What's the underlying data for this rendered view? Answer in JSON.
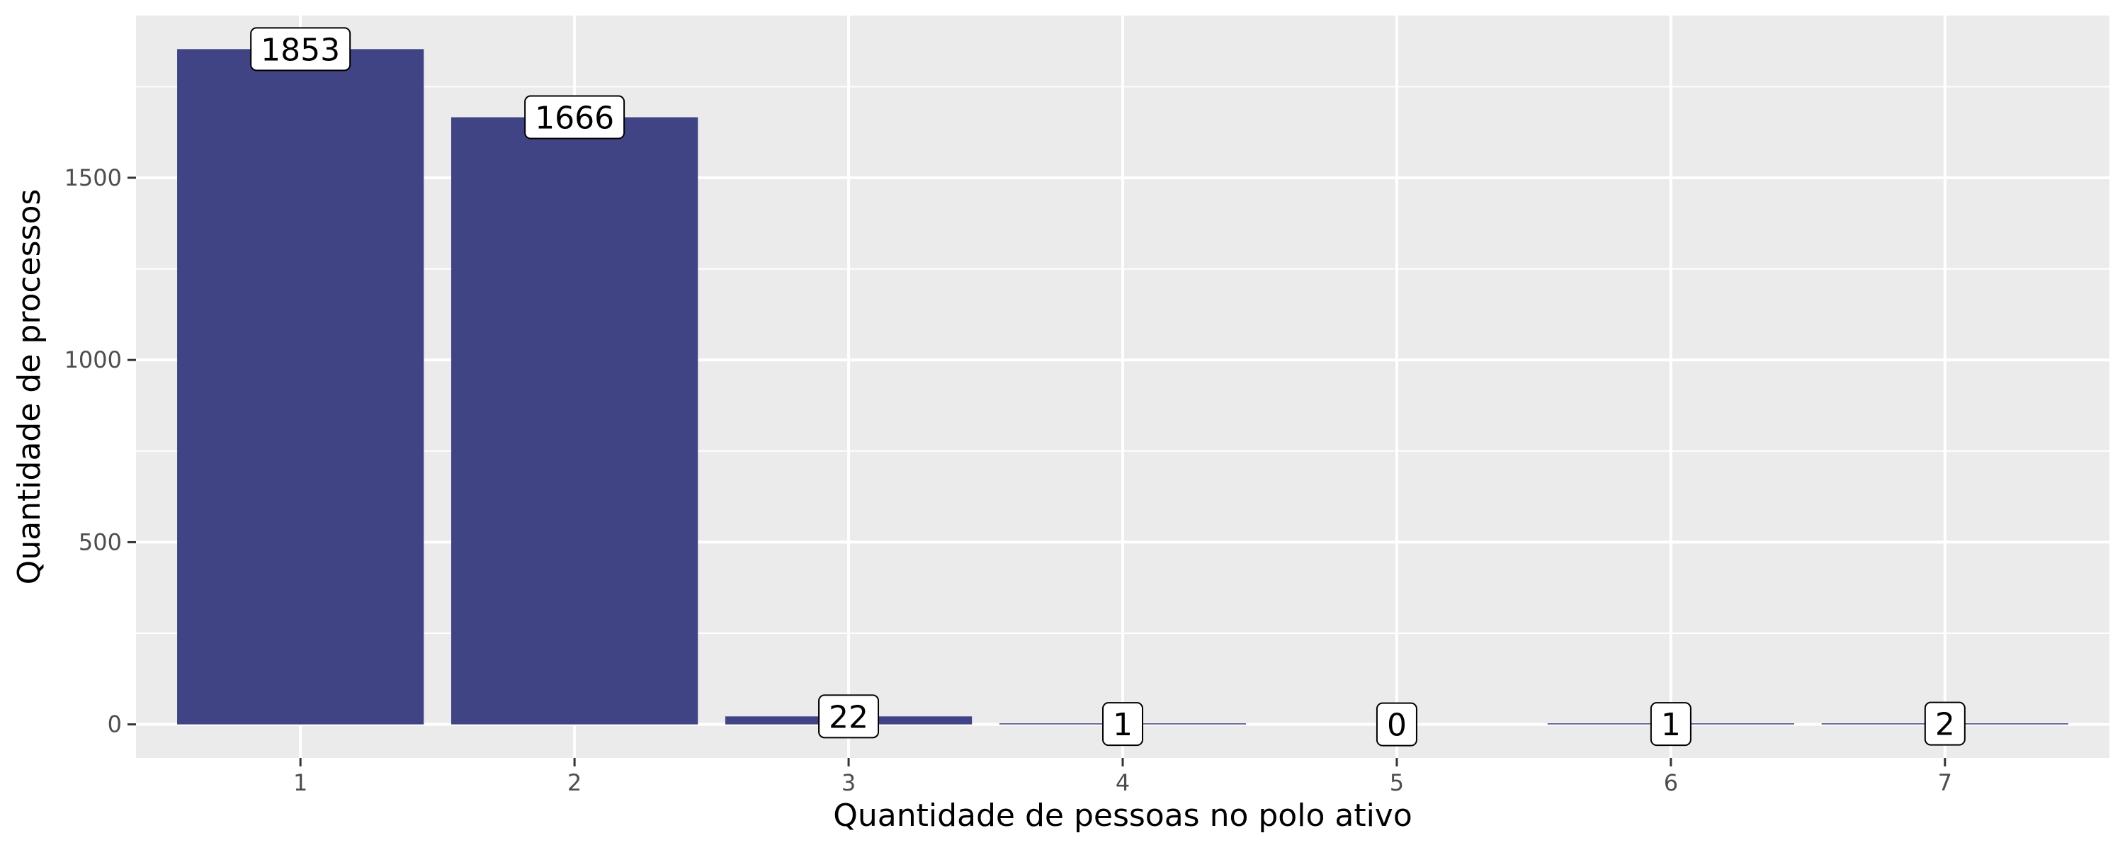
{
  "chart_data": {
    "type": "bar",
    "title": "",
    "xlabel": "Quantidade de pessoas no polo ativo",
    "ylabel": "Quantidade de processos",
    "categories": [
      "1",
      "2",
      "3",
      "4",
      "5",
      "6",
      "7"
    ],
    "values": [
      1853,
      1666,
      22,
      1,
      0,
      1,
      2
    ],
    "data_labels": [
      "1853",
      "1666",
      "22",
      "1",
      "0",
      "1",
      "2"
    ],
    "y_ticks": [
      0,
      500,
      1000,
      1500
    ],
    "y_tick_labels": [
      "0",
      "500",
      "1000",
      "1500"
    ],
    "ylim": [
      -92,
      1945
    ],
    "grid": true,
    "legend": "none",
    "colors": {
      "bar": "#404485",
      "panel_background": "#EBEBEB",
      "grid": "#FFFFFF",
      "label_fill": "#FFFFFF",
      "label_border": "#000000"
    }
  }
}
